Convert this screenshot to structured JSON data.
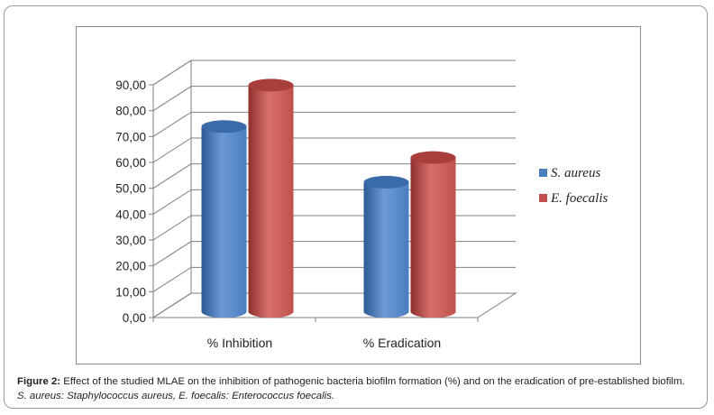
{
  "chart_data": {
    "type": "bar",
    "categories": [
      "% Inhibition",
      "% Eradication"
    ],
    "series": [
      {
        "name": "S. aureus",
        "values": [
          71.5,
          50.0
        ],
        "color": "#4a7ebf"
      },
      {
        "name": "E. foecalis",
        "values": [
          87.5,
          59.5
        ],
        "color": "#c0504d"
      }
    ],
    "yticks": [
      "0,00",
      "10,00",
      "20,00",
      "30,00",
      "40,00",
      "50,00",
      "60,00",
      "70,00",
      "80,00",
      "90,00"
    ],
    "ylim": [
      0,
      90
    ],
    "grid": true,
    "three_d": true,
    "bar_shape": "cylinder",
    "legend_position": "right"
  },
  "caption": {
    "label": "Figure 2:",
    "text": " Effect of the studied MLAE on the inhibition of pathogenic bacteria biofilm formation (%) and on the eradication of pre-established biofilm. ",
    "italic": "S. aureus: Staphylococcus aureus, E. foecalis: Enterococcus foecalis."
  }
}
